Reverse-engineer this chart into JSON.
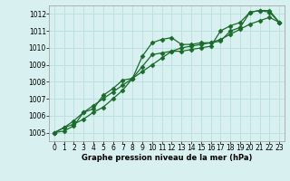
{
  "line1": [
    1005.0,
    1005.3,
    1005.5,
    1005.8,
    1006.2,
    1006.5,
    1007.0,
    1007.5,
    1008.2,
    1009.5,
    1010.3,
    1010.5,
    1010.6,
    1010.2,
    1010.2,
    1010.3,
    1010.3,
    1010.4,
    1011.0,
    1011.2,
    1012.1,
    1012.2,
    1012.2,
    1011.5
  ],
  "line2": [
    1005.0,
    1005.1,
    1005.4,
    1006.2,
    1006.4,
    1007.2,
    1007.6,
    1008.1,
    1008.2,
    1008.9,
    1009.6,
    1009.7,
    1009.8,
    1009.8,
    1009.9,
    1010.0,
    1010.1,
    1011.0,
    1011.3,
    1011.5,
    1012.1,
    1012.2,
    1012.1,
    1011.5
  ],
  "line3": [
    1005.0,
    1005.3,
    1005.7,
    1006.2,
    1006.6,
    1007.0,
    1007.4,
    1007.8,
    1008.2,
    1008.6,
    1009.0,
    1009.4,
    1009.8,
    1010.0,
    1010.1,
    1010.2,
    1010.3,
    1010.5,
    1010.8,
    1011.1,
    1011.4,
    1011.6,
    1011.8,
    1011.5
  ],
  "x": [
    0,
    1,
    2,
    3,
    4,
    5,
    6,
    7,
    8,
    9,
    10,
    11,
    12,
    13,
    14,
    15,
    16,
    17,
    18,
    19,
    20,
    21,
    22,
    23
  ],
  "ylim": [
    1004.5,
    1012.5
  ],
  "xlim": [
    -0.5,
    23.5
  ],
  "yticks": [
    1005,
    1006,
    1007,
    1008,
    1009,
    1010,
    1011,
    1012
  ],
  "xtick_labels": [
    "0",
    "1",
    "2",
    "3",
    "4",
    "5",
    "6",
    "7",
    "8",
    "9",
    "10",
    "11",
    "12",
    "13",
    "14",
    "15",
    "16",
    "17",
    "18",
    "19",
    "20",
    "21",
    "22",
    "23"
  ],
  "xlabel": "Graphe pression niveau de la mer (hPa)",
  "line_color": "#1a6b2a",
  "bg_color": "#d8f0f0",
  "grid_color": "#b8dede",
  "markersize": 2.5,
  "linewidth": 0.9,
  "tick_fontsize": 5.5,
  "xlabel_fontsize": 6.0
}
